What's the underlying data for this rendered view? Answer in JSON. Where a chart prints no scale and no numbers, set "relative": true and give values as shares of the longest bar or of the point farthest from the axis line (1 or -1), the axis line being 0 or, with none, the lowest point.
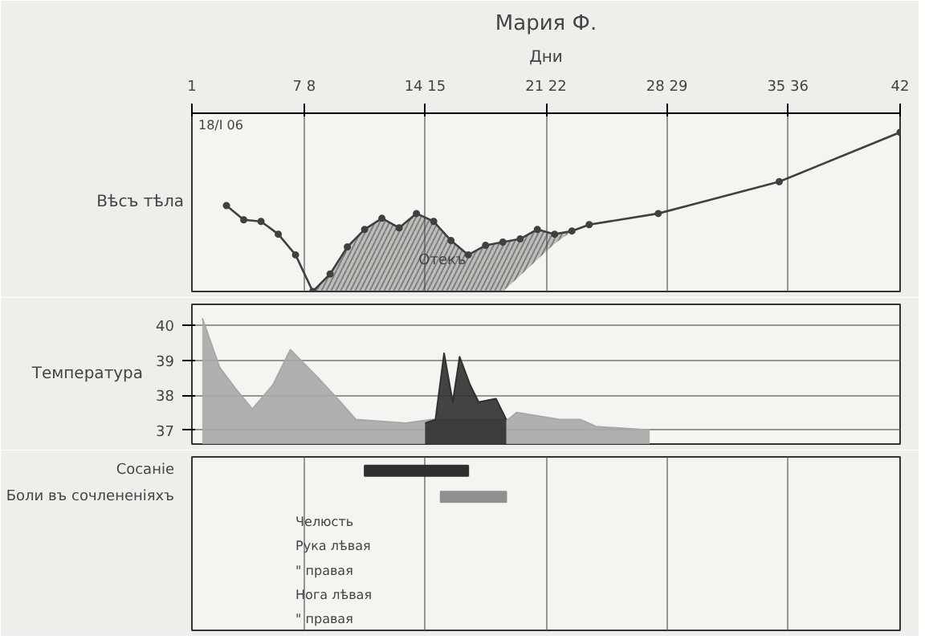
{
  "chart_data": [
    {
      "type": "line",
      "title": "Мария Ф.",
      "xlabel": "Дни",
      "ylabel": "Вѣсъ тѣла",
      "relative": true,
      "xlim": [
        1,
        42
      ],
      "xticks": [
        1,
        {
          "value": 7.5,
          "label": "7 8"
        },
        {
          "value": 14.5,
          "label": "14 15"
        },
        {
          "value": 21.5,
          "label": "21 22"
        },
        {
          "value": 28.5,
          "label": "28 29"
        },
        {
          "value": 35.5,
          "label": "35 36"
        },
        42
      ],
      "tick_labels": "x",
      "grid": "x",
      "marker": "circle",
      "line_style": "solid",
      "series": [
        {
          "color": "#404040",
          "x": [
            3,
            4,
            5,
            6,
            7,
            8,
            9,
            10,
            11,
            12,
            13,
            14,
            15,
            16,
            17,
            18,
            19,
            20,
            21,
            22,
            23,
            24,
            28,
            35,
            42
          ],
          "values": [
            0.54,
            0.45,
            0.44,
            0.36,
            0.23,
            0,
            0.11,
            0.28,
            0.39,
            0.46,
            0.4,
            0.49,
            0.44,
            0.32,
            0.23,
            0.29,
            0.31,
            0.33,
            0.39,
            0.36,
            0.38,
            0.42,
            0.49,
            0.69,
            1
          ],
          "lower": [
            null,
            null,
            null,
            null,
            null,
            0,
            0,
            0,
            0,
            0,
            0,
            0,
            0,
            0,
            0,
            0,
            0,
            0.1,
            0.2,
            0.3,
            0.38,
            null,
            null,
            null,
            null
          ],
          "upper": [
            null,
            null,
            null,
            null,
            null,
            0,
            0.11,
            0.28,
            0.39,
            0.46,
            0.4,
            0.49,
            0.44,
            0.32,
            0.23,
            0.29,
            0.31,
            0.33,
            0.39,
            0.36,
            0.38,
            null,
            null,
            null,
            null
          ]
        }
      ],
      "annotations": [
        "18/I 06",
        "Отекъ"
      ]
    },
    {
      "type": "area",
      "ylabel": "Температура",
      "xlim": [
        1,
        42
      ],
      "ylim": [
        36.6,
        40.6
      ],
      "yticks": [
        37,
        38,
        39,
        40
      ],
      "tick_labels": "y",
      "grid": true,
      "series": [
        {
          "color": "#a8a8a8",
          "x": [
            1.6,
            2.6,
            3.5,
            4.5,
            5.7,
            6.7,
            8.3,
            9.6,
            10.5,
            13.4,
            14.9,
            19.3,
            19.8,
            22.3,
            23.5,
            24.4,
            27.5
          ],
          "values": [
            40.2,
            38.8,
            38.2,
            37.6,
            38.3,
            39.3,
            38.5,
            37.8,
            37.3,
            37.2,
            37.3,
            37.3,
            37.5,
            37.3,
            37.3,
            37.1,
            37.0
          ]
        },
        {
          "color": "#303030",
          "x": [
            14.5,
            15.1,
            15.6,
            16.1,
            16.5,
            17.1,
            17.6,
            18.6,
            19.2
          ],
          "values": [
            37.2,
            37.3,
            39.2,
            37.8,
            39.1,
            38.3,
            37.8,
            37.9,
            37.3
          ]
        }
      ]
    },
    {
      "type": "bar",
      "orientation": "horizontal",
      "xlim": [
        1,
        42
      ],
      "tick_labels": "y",
      "grid": "x",
      "xticks": [
        {
          "value": 1,
          "label": null
        },
        {
          "value": 7.5,
          "label": null
        },
        {
          "value": 14.5,
          "label": null
        },
        {
          "value": 21.5,
          "label": null
        },
        {
          "value": 28.5,
          "label": null
        },
        {
          "value": 35.5,
          "label": null
        },
        {
          "value": 42,
          "label": null
        }
      ],
      "categories": [
        "Сосаніе",
        "Боли въ сочлененіяхъ"
      ],
      "base": [
        11,
        15.4
      ],
      "values": [
        6,
        3.8
      ],
      "colors": [
        "#303030",
        "#909090"
      ],
      "annotations": [
        "Челюсть",
        "Рука лѣвая",
        "\" правая",
        "Нога лѣвая",
        "\" правая"
      ]
    }
  ]
}
